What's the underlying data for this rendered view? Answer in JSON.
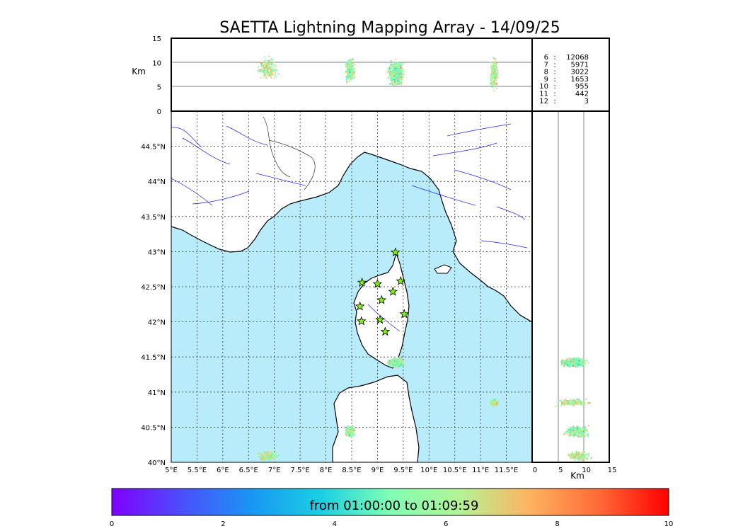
{
  "title": "SAETTA Lightning Mapping Array - 14/09/25",
  "colors": {
    "sea": "#b8ecfb",
    "land": "#ffffff",
    "river": "#2222ff",
    "border": "#333333",
    "grid": "#333333",
    "station": "#7cfc00",
    "highlight_count": "#ff0000"
  },
  "chart_data": {
    "type": "scatter",
    "map": {
      "lon_range": [
        5,
        12
      ],
      "lat_range": [
        40,
        45
      ],
      "lon_ticks": [
        "5°E",
        "5.5°E",
        "6°E",
        "6.5°E",
        "7°E",
        "7.5°E",
        "8°E",
        "8.5°E",
        "9°E",
        "9.5°E",
        "10°E",
        "10.5°E",
        "11°E",
        "11.5°E"
      ],
      "lat_ticks": [
        "40°N",
        "40.5°N",
        "41°N",
        "41.5°N",
        "42°N",
        "42.5°N",
        "43°N",
        "43.5°N",
        "44°N",
        "44.5°N"
      ],
      "grid": true
    },
    "altitude_axis": {
      "label": "Km",
      "range": [
        0,
        15
      ],
      "ticks": [
        "0",
        "5",
        "10",
        "15"
      ]
    },
    "station_count_table": [
      {
        "stations": "6",
        "sep": ":",
        "count": "12068",
        "highlight": false
      },
      {
        "stations": "7",
        "sep": ":",
        "count": "5971",
        "highlight": true
      },
      {
        "stations": "8",
        "sep": ":",
        "count": "3022",
        "highlight": false
      },
      {
        "stations": "9",
        "sep": ":",
        "count": "1653",
        "highlight": false
      },
      {
        "stations": "10",
        "sep": ":",
        "count": "955",
        "highlight": false
      },
      {
        "stations": "11",
        "sep": ":",
        "count": "442",
        "highlight": false
      },
      {
        "stations": "12",
        "sep": ":",
        "count": "3",
        "highlight": false
      }
    ],
    "stations_lonlat": [
      [
        9.35,
        42.99
      ],
      [
        8.7,
        42.56
      ],
      [
        9.0,
        42.54
      ],
      [
        9.45,
        42.58
      ],
      [
        9.3,
        42.43
      ],
      [
        9.08,
        42.31
      ],
      [
        8.66,
        42.22
      ],
      [
        8.69,
        42.01
      ],
      [
        9.05,
        42.03
      ],
      [
        9.52,
        42.11
      ],
      [
        9.15,
        41.86
      ]
    ],
    "clusters": [
      {
        "lon": 9.35,
        "lat": 41.43,
        "lon_spread": 0.18,
        "lat_spread": 0.08,
        "alt": 8.0,
        "alt_spread": 2.0,
        "time": 5.5,
        "time_spread": 3.5,
        "points": 450
      },
      {
        "lon": 8.45,
        "lat": 40.45,
        "lon_spread": 0.12,
        "lat_spread": 0.1,
        "alt": 8.5,
        "alt_spread": 2.0,
        "time": 5.5,
        "time_spread": 3.5,
        "points": 220
      },
      {
        "lon": 11.25,
        "lat": 40.86,
        "lon_spread": 0.1,
        "lat_spread": 0.06,
        "alt": 8.0,
        "alt_spread": 2.5,
        "time": 6.0,
        "time_spread": 3.0,
        "points": 170
      },
      {
        "lon": 6.85,
        "lat": 40.1,
        "lon_spread": 0.25,
        "lat_spread": 0.08,
        "alt": 9.0,
        "alt_spread": 2.0,
        "time": 6.0,
        "time_spread": 3.0,
        "points": 170
      }
    ],
    "colorbar": {
      "label": "from 01:00:00 to 01:09:59",
      "range": [
        0,
        10
      ],
      "ticks": [
        "0",
        "2",
        "4",
        "6",
        "8",
        "10"
      ],
      "colormap": "rainbow"
    }
  }
}
